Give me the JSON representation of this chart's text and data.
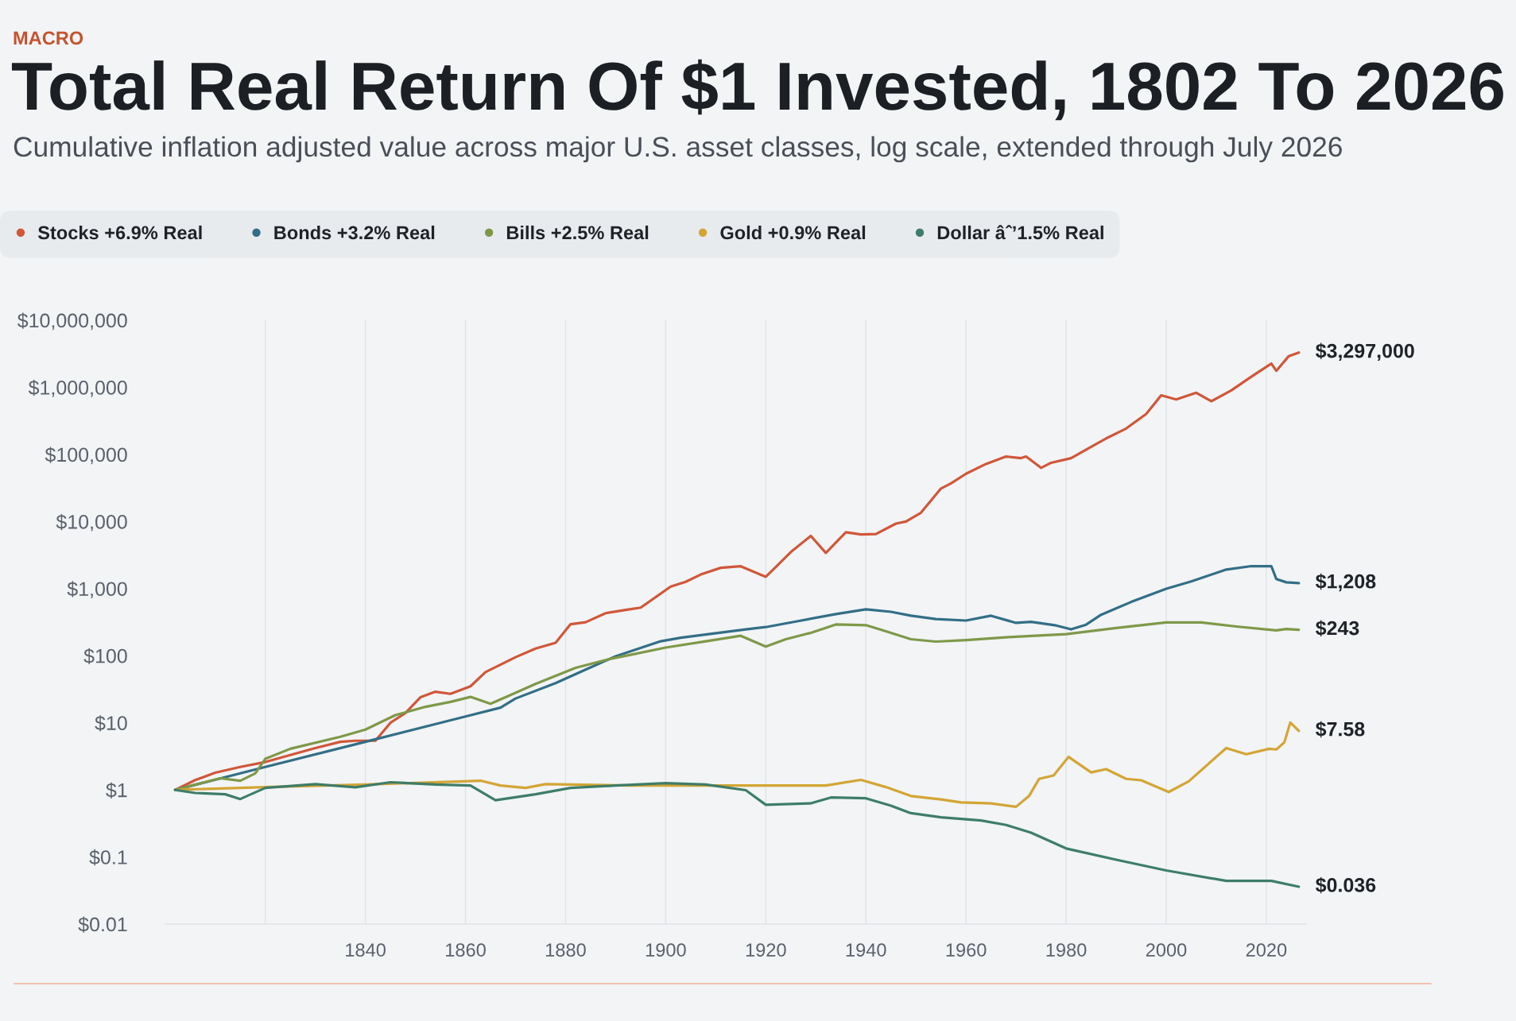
{
  "chart_data": {
    "type": "line",
    "title": "Total Real Return Of $1 Invested, 1802 To 2026",
    "subtitle": "Cumulative inflation adjusted value across major U.S. asset classes, log scale, extended through July 2026",
    "annotations": [
      "MACRO"
    ],
    "log": "y",
    "grid": "x",
    "legend": "top left",
    "xlim": [
      1800,
      2028
    ],
    "xticks": [
      {
        "value": 1820,
        "label": null
      },
      1840,
      1860,
      1880,
      1900,
      1920,
      1940,
      1960,
      1980,
      2000,
      2020
    ],
    "ylim": [
      0.01,
      10000000
    ],
    "yticks": [
      {
        "value": 0.01,
        "label": "$0.01"
      },
      {
        "value": 0.1,
        "label": "$0.1"
      },
      {
        "value": 1,
        "label": "$1"
      },
      {
        "value": 10,
        "label": "$10"
      },
      {
        "value": 100,
        "label": "$100"
      },
      {
        "value": 1000,
        "label": "$1,000"
      },
      {
        "value": 10000,
        "label": "$10,000"
      },
      {
        "value": 100000,
        "label": "$100,000"
      },
      {
        "value": 1000000,
        "label": "$1,000,000"
      },
      {
        "value": 10000000,
        "label": "$10,000,000"
      }
    ],
    "series": [
      {
        "name": "Stocks +6.9% Real",
        "color": "#d0573a",
        "x": [
          1802,
          1806,
          1810,
          1815,
          1820,
          1825,
          1830,
          1835,
          1838,
          1842,
          1845,
          1848,
          1851,
          1854,
          1857,
          1861,
          1864,
          1870,
          1874,
          1878,
          1881,
          1884,
          1888,
          1892,
          1895,
          1901,
          1904,
          1907,
          1911,
          1915,
          1920,
          1922,
          1925,
          1929,
          1932,
          1936,
          1939,
          1942,
          1946,
          1948,
          1951,
          1955,
          1957,
          1960,
          1964,
          1968,
          1971,
          1972,
          1975,
          1977,
          1981,
          1985,
          1988,
          1992,
          1996,
          1999,
          2002,
          2006,
          2009,
          2013,
          2017,
          2021,
          2022,
          2024.5,
          2026.5
        ],
        "values": [
          1,
          1.4,
          1.8,
          2.2,
          2.6,
          3.3,
          4.2,
          5.2,
          5.4,
          5.4,
          10,
          14,
          24,
          29,
          27,
          35,
          57,
          95,
          128,
          156,
          295,
          315,
          430,
          480,
          520,
          1070,
          1260,
          1620,
          2040,
          2150,
          1500,
          2100,
          3500,
          6100,
          3400,
          6900,
          6400,
          6500,
          9300,
          10000,
          13500,
          31000,
          37000,
          51500,
          72000,
          93000,
          88000,
          93000,
          63000,
          75000,
          88000,
          130000,
          173000,
          243000,
          400000,
          760000,
          660000,
          830000,
          620000,
          900000,
          1440000,
          2260000,
          1760000,
          2920000,
          3297000
        ],
        "value_labels": [
          null,
          null,
          null,
          null,
          null,
          null,
          null,
          null,
          null,
          null,
          null,
          null,
          null,
          null,
          null,
          null,
          null,
          null,
          null,
          null,
          null,
          null,
          null,
          null,
          null,
          null,
          null,
          null,
          null,
          null,
          null,
          null,
          null,
          null,
          null,
          null,
          null,
          null,
          null,
          null,
          null,
          null,
          null,
          null,
          null,
          null,
          null,
          null,
          null,
          null,
          null,
          null,
          null,
          null,
          null,
          null,
          null,
          null,
          null,
          null,
          null,
          null,
          null,
          null,
          "$3,297,000"
        ]
      },
      {
        "name": "Bonds +3.2% Real",
        "color": "#336e86",
        "x": [
          1802,
          1820,
          1840,
          1860,
          1867,
          1870,
          1878,
          1884,
          1890,
          1899,
          1903,
          1916,
          1920,
          1926,
          1934,
          1940,
          1945,
          1949,
          1954,
          1960,
          1965,
          1970,
          1973,
          1978,
          1981,
          1984,
          1987,
          1993,
          2000,
          2005,
          2012,
          2017,
          2021,
          2022,
          2024,
          2026.5
        ],
        "values": [
          1,
          2.2,
          5.2,
          12.4,
          16.8,
          23,
          39,
          62,
          98,
          164,
          185,
          247,
          267,
          323,
          416,
          491,
          451,
          394,
          351,
          334,
          394,
          308,
          320,
          282,
          247,
          290,
          408,
          632,
          995,
          1280,
          1920,
          2160,
          2160,
          1390,
          1240,
          1208
        ],
        "value_labels": [
          null,
          null,
          null,
          null,
          null,
          null,
          null,
          null,
          null,
          null,
          null,
          null,
          null,
          null,
          null,
          null,
          null,
          null,
          null,
          null,
          null,
          null,
          null,
          null,
          null,
          null,
          null,
          null,
          null,
          null,
          null,
          null,
          null,
          null,
          null,
          "$1,208"
        ]
      },
      {
        "name": "Bills +2.5% Real",
        "color": "#7f9848",
        "x": [
          1802,
          1807,
          1811,
          1815,
          1818,
          1820,
          1825,
          1835,
          1840,
          1846,
          1852,
          1857,
          1861,
          1865,
          1868,
          1874,
          1882,
          1889,
          1893,
          1900,
          1908,
          1915,
          1920,
          1924,
          1929,
          1934,
          1940,
          1944,
          1949,
          1954,
          1960,
          1970,
          1980,
          1990,
          2000,
          2007,
          2014,
          2022,
          2024,
          2026.5
        ],
        "values": [
          1,
          1.25,
          1.49,
          1.37,
          1.76,
          2.9,
          4.1,
          6.2,
          7.9,
          13,
          17.3,
          20.5,
          24.3,
          19.2,
          24,
          38,
          66,
          90,
          103,
          132,
          164,
          198,
          137,
          176,
          219,
          292,
          285,
          231,
          176,
          162,
          171,
          192,
          209,
          259,
          313,
          313,
          272,
          238,
          250,
          243
        ],
        "value_labels": [
          null,
          null,
          null,
          null,
          null,
          null,
          null,
          null,
          null,
          null,
          null,
          null,
          null,
          null,
          null,
          null,
          null,
          null,
          null,
          null,
          null,
          null,
          null,
          null,
          null,
          null,
          null,
          null,
          null,
          null,
          null,
          null,
          null,
          null,
          null,
          null,
          null,
          null,
          null,
          "$243"
        ]
      },
      {
        "name": "Gold +0.9% Real",
        "color": "#d3a534",
        "x": [
          1802,
          1820,
          1840,
          1863,
          1867,
          1872,
          1876,
          1893,
          1919,
          1932,
          1939,
          1944,
          1949,
          1955,
          1959,
          1965,
          1970,
          1972.6,
          1974.6,
          1977.5,
          1980.5,
          1985,
          1988,
          1992,
          1995,
          2000.5,
          2004.5,
          2012,
          2016,
          2020.6,
          2022,
          2023.6,
          2024.8,
          2026.5
        ],
        "values": [
          1,
          1.1,
          1.2,
          1.37,
          1.16,
          1.07,
          1.22,
          1.16,
          1.16,
          1.16,
          1.41,
          1.1,
          0.81,
          0.72,
          0.65,
          0.63,
          0.56,
          0.81,
          1.46,
          1.64,
          3.1,
          1.82,
          2.04,
          1.46,
          1.39,
          0.93,
          1.34,
          4.2,
          3.4,
          4.1,
          4.0,
          5.1,
          10.1,
          7.58
        ],
        "value_labels": [
          null,
          null,
          null,
          null,
          null,
          null,
          null,
          null,
          null,
          null,
          null,
          null,
          null,
          null,
          null,
          null,
          null,
          null,
          null,
          null,
          null,
          null,
          null,
          null,
          null,
          null,
          null,
          null,
          null,
          null,
          null,
          null,
          null,
          "$7.58"
        ]
      },
      {
        "name": "Dollar âˆ’1.5% Real",
        "color": "#3e7d68",
        "x": [
          1802,
          1806,
          1812,
          1815,
          1820,
          1830,
          1838,
          1845,
          1854,
          1861,
          1866,
          1874,
          1881,
          1890,
          1900,
          1908,
          1916,
          1920,
          1929,
          1933,
          1940,
          1945,
          1949,
          1955,
          1963,
          1968,
          1973,
          1980,
          1990,
          2000,
          2012,
          2021,
          2026.5
        ],
        "values": [
          1,
          0.9,
          0.86,
          0.73,
          1.07,
          1.22,
          1.09,
          1.3,
          1.2,
          1.16,
          0.7,
          0.86,
          1.07,
          1.16,
          1.26,
          1.2,
          0.99,
          0.6,
          0.63,
          0.77,
          0.75,
          0.58,
          0.45,
          0.39,
          0.35,
          0.3,
          0.23,
          0.134,
          0.091,
          0.063,
          0.044,
          0.044,
          0.036
        ],
        "value_labels": [
          null,
          null,
          null,
          null,
          null,
          null,
          null,
          null,
          null,
          null,
          null,
          null,
          null,
          null,
          null,
          null,
          null,
          null,
          null,
          null,
          null,
          null,
          null,
          null,
          null,
          null,
          null,
          null,
          null,
          null,
          null,
          null,
          "$0.036"
        ]
      }
    ]
  }
}
